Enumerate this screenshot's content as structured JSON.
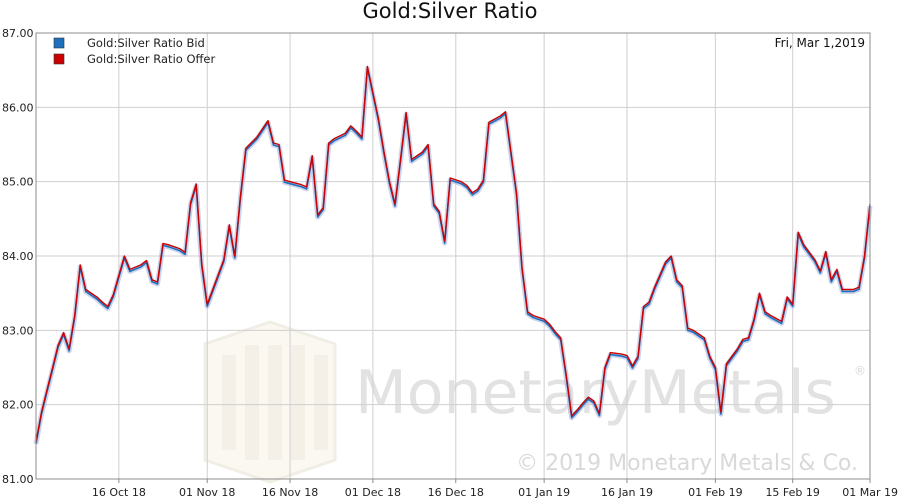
{
  "chart_data": {
    "type": "line",
    "title": "Gold:Silver Ratio",
    "date_label": "Fri, Mar 1,2019",
    "ylim": [
      81,
      87
    ],
    "y_ticks": [
      "81.00",
      "82.00",
      "83.00",
      "84.00",
      "85.00",
      "86.00",
      "87.00"
    ],
    "x_range": [
      "2018-10-01",
      "2019-03-01"
    ],
    "x_ticks": [
      {
        "label": "16 Oct 18",
        "date": "2018-10-16"
      },
      {
        "label": "01 Nov 18",
        "date": "2018-11-01"
      },
      {
        "label": "16 Nov 18",
        "date": "2018-11-16"
      },
      {
        "label": "01 Dec 18",
        "date": "2018-12-01"
      },
      {
        "label": "16 Dec 18",
        "date": "2018-12-16"
      },
      {
        "label": "01 Jan 19",
        "date": "2019-01-01"
      },
      {
        "label": "16 Jan 19",
        "date": "2019-01-16"
      },
      {
        "label": "01 Feb 19",
        "date": "2019-02-01"
      },
      {
        "label": "15 Feb 19",
        "date": "2019-02-15"
      },
      {
        "label": "01 Mar 19",
        "date": "2019-03-01"
      }
    ],
    "grid": true,
    "legend_position": "top-left",
    "series": [
      {
        "name": "Gold:Silver Ratio Bid",
        "color": "#1f6fbf"
      },
      {
        "name": "Gold:Silver Ratio Offer",
        "color": "#cc0000"
      }
    ],
    "points": [
      [
        "2018-10-01",
        81.5
      ],
      [
        "2018-10-02",
        81.9
      ],
      [
        "2018-10-03",
        82.2
      ],
      [
        "2018-10-04",
        82.5
      ],
      [
        "2018-10-05",
        82.8
      ],
      [
        "2018-10-06",
        82.97
      ],
      [
        "2018-10-07",
        82.75
      ],
      [
        "2018-10-08",
        83.2
      ],
      [
        "2018-10-09",
        83.88
      ],
      [
        "2018-10-10",
        83.55
      ],
      [
        "2018-10-12",
        83.45
      ],
      [
        "2018-10-13",
        83.38
      ],
      [
        "2018-10-14",
        83.32
      ],
      [
        "2018-10-15",
        83.48
      ],
      [
        "2018-10-17",
        84.0
      ],
      [
        "2018-10-18",
        83.82
      ],
      [
        "2018-10-20",
        83.88
      ],
      [
        "2018-10-21",
        83.94
      ],
      [
        "2018-10-22",
        83.68
      ],
      [
        "2018-10-23",
        83.65
      ],
      [
        "2018-10-24",
        84.17
      ],
      [
        "2018-10-25",
        84.15
      ],
      [
        "2018-10-27",
        84.1
      ],
      [
        "2018-10-28",
        84.05
      ],
      [
        "2018-10-29",
        84.72
      ],
      [
        "2018-10-30",
        84.97
      ],
      [
        "2018-10-31",
        83.9
      ],
      [
        "2018-11-01",
        83.35
      ],
      [
        "2018-11-02",
        83.55
      ],
      [
        "2018-11-04",
        83.95
      ],
      [
        "2018-11-05",
        84.42
      ],
      [
        "2018-11-06",
        84.0
      ],
      [
        "2018-11-07",
        84.8
      ],
      [
        "2018-11-08",
        85.45
      ],
      [
        "2018-11-10",
        85.6
      ],
      [
        "2018-11-12",
        85.82
      ],
      [
        "2018-11-13",
        85.52
      ],
      [
        "2018-11-14",
        85.5
      ],
      [
        "2018-11-15",
        85.02
      ],
      [
        "2018-11-16",
        85.0
      ],
      [
        "2018-11-18",
        84.96
      ],
      [
        "2018-11-19",
        84.93
      ],
      [
        "2018-11-20",
        85.35
      ],
      [
        "2018-11-21",
        84.55
      ],
      [
        "2018-11-22",
        84.65
      ],
      [
        "2018-11-23",
        85.52
      ],
      [
        "2018-11-24",
        85.58
      ],
      [
        "2018-11-26",
        85.65
      ],
      [
        "2018-11-27",
        85.75
      ],
      [
        "2018-11-28",
        85.68
      ],
      [
        "2018-11-29",
        85.6
      ],
      [
        "2018-11-30",
        86.55
      ],
      [
        "2018-12-02",
        85.85
      ],
      [
        "2018-12-03",
        85.4
      ],
      [
        "2018-12-04",
        85.0
      ],
      [
        "2018-12-05",
        84.7
      ],
      [
        "2018-12-06",
        85.3
      ],
      [
        "2018-12-07",
        85.93
      ],
      [
        "2018-12-08",
        85.3
      ],
      [
        "2018-12-10",
        85.4
      ],
      [
        "2018-12-11",
        85.5
      ],
      [
        "2018-12-12",
        84.7
      ],
      [
        "2018-12-13",
        84.6
      ],
      [
        "2018-12-14",
        84.2
      ],
      [
        "2018-12-15",
        85.05
      ],
      [
        "2018-12-17",
        85.0
      ],
      [
        "2018-12-18",
        84.95
      ],
      [
        "2018-12-19",
        84.85
      ],
      [
        "2018-12-20",
        84.9
      ],
      [
        "2018-12-21",
        85.02
      ],
      [
        "2018-12-22",
        85.8
      ],
      [
        "2018-12-24",
        85.88
      ],
      [
        "2018-12-25",
        85.94
      ],
      [
        "2018-12-27",
        84.85
      ],
      [
        "2018-12-28",
        83.85
      ],
      [
        "2018-12-29",
        83.25
      ],
      [
        "2018-12-30",
        83.2
      ],
      [
        "2019-01-01",
        83.15
      ],
      [
        "2019-01-02",
        83.08
      ],
      [
        "2019-01-03",
        82.98
      ],
      [
        "2019-01-04",
        82.9
      ],
      [
        "2019-01-05",
        82.4
      ],
      [
        "2019-01-06",
        81.85
      ],
      [
        "2019-01-07",
        81.93
      ],
      [
        "2019-01-08",
        82.02
      ],
      [
        "2019-01-09",
        82.1
      ],
      [
        "2019-01-10",
        82.05
      ],
      [
        "2019-01-11",
        81.88
      ],
      [
        "2019-01-12",
        82.5
      ],
      [
        "2019-01-13",
        82.7
      ],
      [
        "2019-01-15",
        82.68
      ],
      [
        "2019-01-16",
        82.66
      ],
      [
        "2019-01-17",
        82.52
      ],
      [
        "2019-01-18",
        82.65
      ],
      [
        "2019-01-19",
        83.32
      ],
      [
        "2019-01-20",
        83.38
      ],
      [
        "2019-01-21",
        83.58
      ],
      [
        "2019-01-22",
        83.75
      ],
      [
        "2019-01-23",
        83.92
      ],
      [
        "2019-01-24",
        84.0
      ],
      [
        "2019-01-25",
        83.68
      ],
      [
        "2019-01-26",
        83.6
      ],
      [
        "2019-01-27",
        83.03
      ],
      [
        "2019-01-28",
        83.0
      ],
      [
        "2019-01-30",
        82.9
      ],
      [
        "2019-01-31",
        82.65
      ],
      [
        "2019-02-01",
        82.5
      ],
      [
        "2019-02-02",
        81.9
      ],
      [
        "2019-02-03",
        82.55
      ],
      [
        "2019-02-04",
        82.65
      ],
      [
        "2019-02-05",
        82.75
      ],
      [
        "2019-02-06",
        82.88
      ],
      [
        "2019-02-07",
        82.9
      ],
      [
        "2019-02-08",
        83.15
      ],
      [
        "2019-02-09",
        83.5
      ],
      [
        "2019-02-10",
        83.25
      ],
      [
        "2019-02-11",
        83.2
      ],
      [
        "2019-02-13",
        83.12
      ],
      [
        "2019-02-14",
        83.45
      ],
      [
        "2019-02-15",
        83.35
      ],
      [
        "2019-02-16",
        84.32
      ],
      [
        "2019-02-17",
        84.15
      ],
      [
        "2019-02-19",
        83.95
      ],
      [
        "2019-02-20",
        83.8
      ],
      [
        "2019-02-21",
        84.06
      ],
      [
        "2019-02-22",
        83.68
      ],
      [
        "2019-02-23",
        83.82
      ],
      [
        "2019-02-24",
        83.55
      ],
      [
        "2019-02-26",
        83.55
      ],
      [
        "2019-02-27",
        83.58
      ],
      [
        "2019-02-28",
        84.0
      ],
      [
        "2019-03-01",
        84.7
      ]
    ]
  },
  "watermark": {
    "brand": "MonetaryMetals",
    "copyright": "© 2019 Monetary Metals & Co.",
    "registered": "®"
  }
}
